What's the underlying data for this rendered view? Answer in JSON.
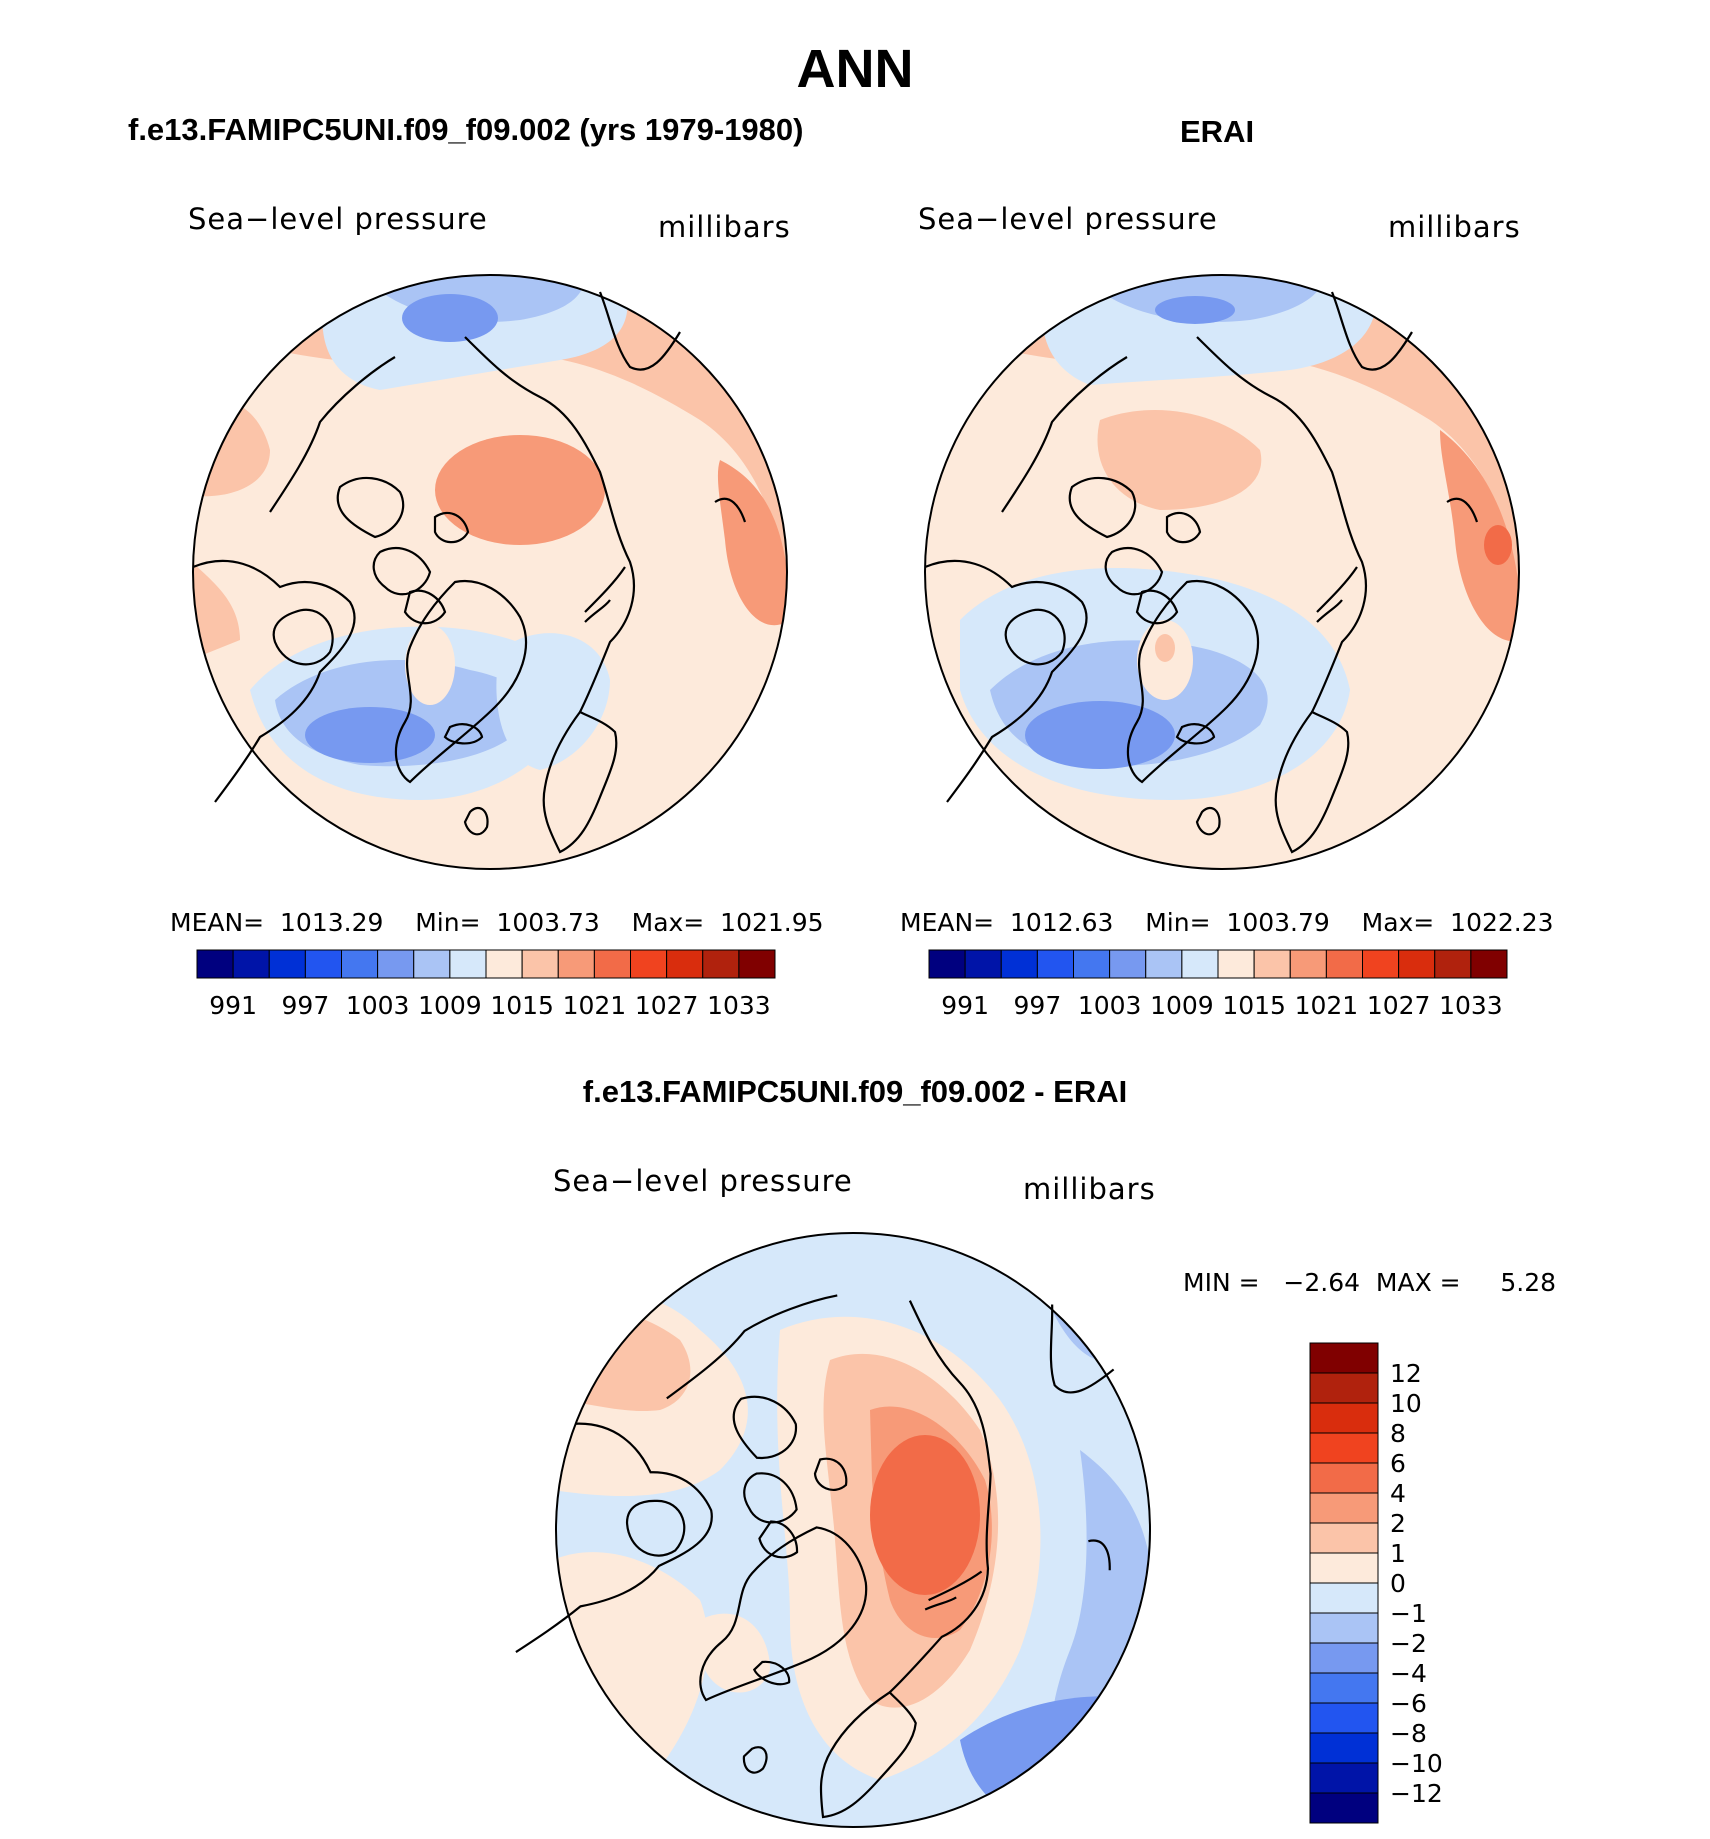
{
  "page_title": "ANN",
  "panels": [
    {
      "title": "f.e13.FAMIPC5UNI.f09_f09.002 (yrs 1979-1980)",
      "variable": "Sea−level pressure",
      "units": "millibars",
      "stats": {
        "mean_label": "MEAN=",
        "mean": "1013.29",
        "min_label": "Min=",
        "min": "1003.73",
        "max_label": "Max=",
        "max": "1021.95"
      }
    },
    {
      "title": "ERAI",
      "variable": "Sea−level pressure",
      "units": "millibars",
      "stats": {
        "mean_label": "MEAN=",
        "mean": "1012.63",
        "min_label": "Min=",
        "min": "1003.79",
        "max_label": "Max=",
        "max": "1022.23"
      }
    },
    {
      "title": "f.e13.FAMIPC5UNI.f09_f09.002 - ERAI",
      "variable": "Sea−level pressure",
      "units": "millibars",
      "stats": {
        "min_label": "MIN =",
        "min": "−2.64",
        "max_label": "MAX =",
        "max": "5.28"
      }
    }
  ],
  "abs_colorbar": {
    "colors": [
      "#00007f",
      "#0014a8",
      "#0030d6",
      "#2255f0",
      "#4477f0",
      "#7799f0",
      "#aac4f5",
      "#d6e8fa",
      "#fdeadb",
      "#fbc4a9",
      "#f79a78",
      "#f26b48",
      "#f0431f",
      "#d92d0d",
      "#b0220d",
      "#800000"
    ],
    "tick_labels": [
      "991",
      "997",
      "1003",
      "1009",
      "1015",
      "1021",
      "1027",
      "1033"
    ]
  },
  "diff_colorbar": {
    "colors": [
      "#800000",
      "#b0220d",
      "#d92d0d",
      "#f0431f",
      "#f26b48",
      "#f79a78",
      "#fbc4a9",
      "#fdeadb",
      "#d6e8fa",
      "#aac4f5",
      "#7799f0",
      "#4477f0",
      "#2255f0",
      "#0030d6",
      "#0014a8",
      "#00007f"
    ],
    "tick_labels": [
      "12",
      "10",
      "8",
      "6",
      "4",
      "2",
      "1",
      "0",
      "−1",
      "−2",
      "−4",
      "−6",
      "−8",
      "−10",
      "−12"
    ]
  }
}
